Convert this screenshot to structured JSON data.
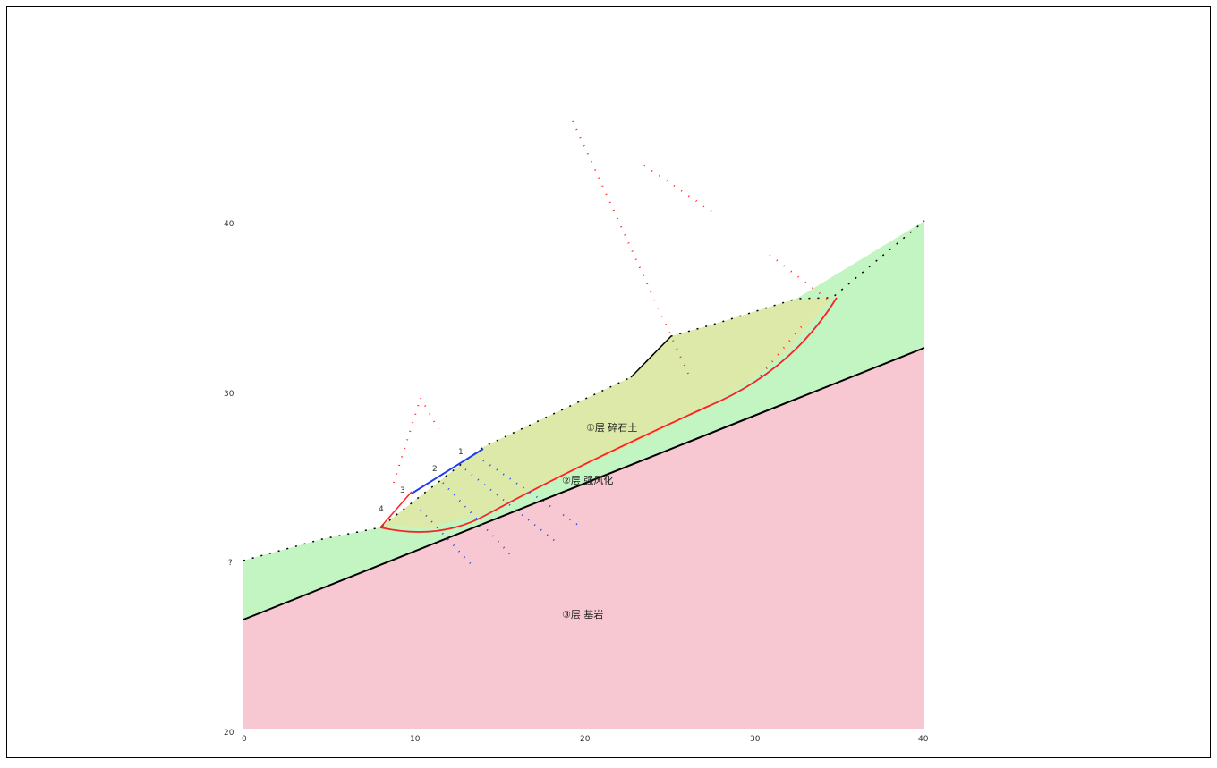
{
  "layers": {
    "deposit": {
      "label": "①层 碎石土",
      "color": "#dce9a8"
    },
    "weathered": {
      "label": "②层 强风化",
      "color": "#c2f5c2"
    },
    "bedrock": {
      "label": "③层 基岩",
      "color": "#f8c8d2"
    }
  },
  "axes": {
    "y_ticks": [
      "40",
      "30",
      "?",
      "20"
    ],
    "x_ticks": [
      "0",
      "10",
      "20",
      "30",
      "40"
    ]
  },
  "slices": [
    "1",
    "2",
    "3",
    "4"
  ],
  "colors": {
    "slip_surface": "#ff2020",
    "force_blue": "#1f3df0",
    "line": "#000000"
  }
}
